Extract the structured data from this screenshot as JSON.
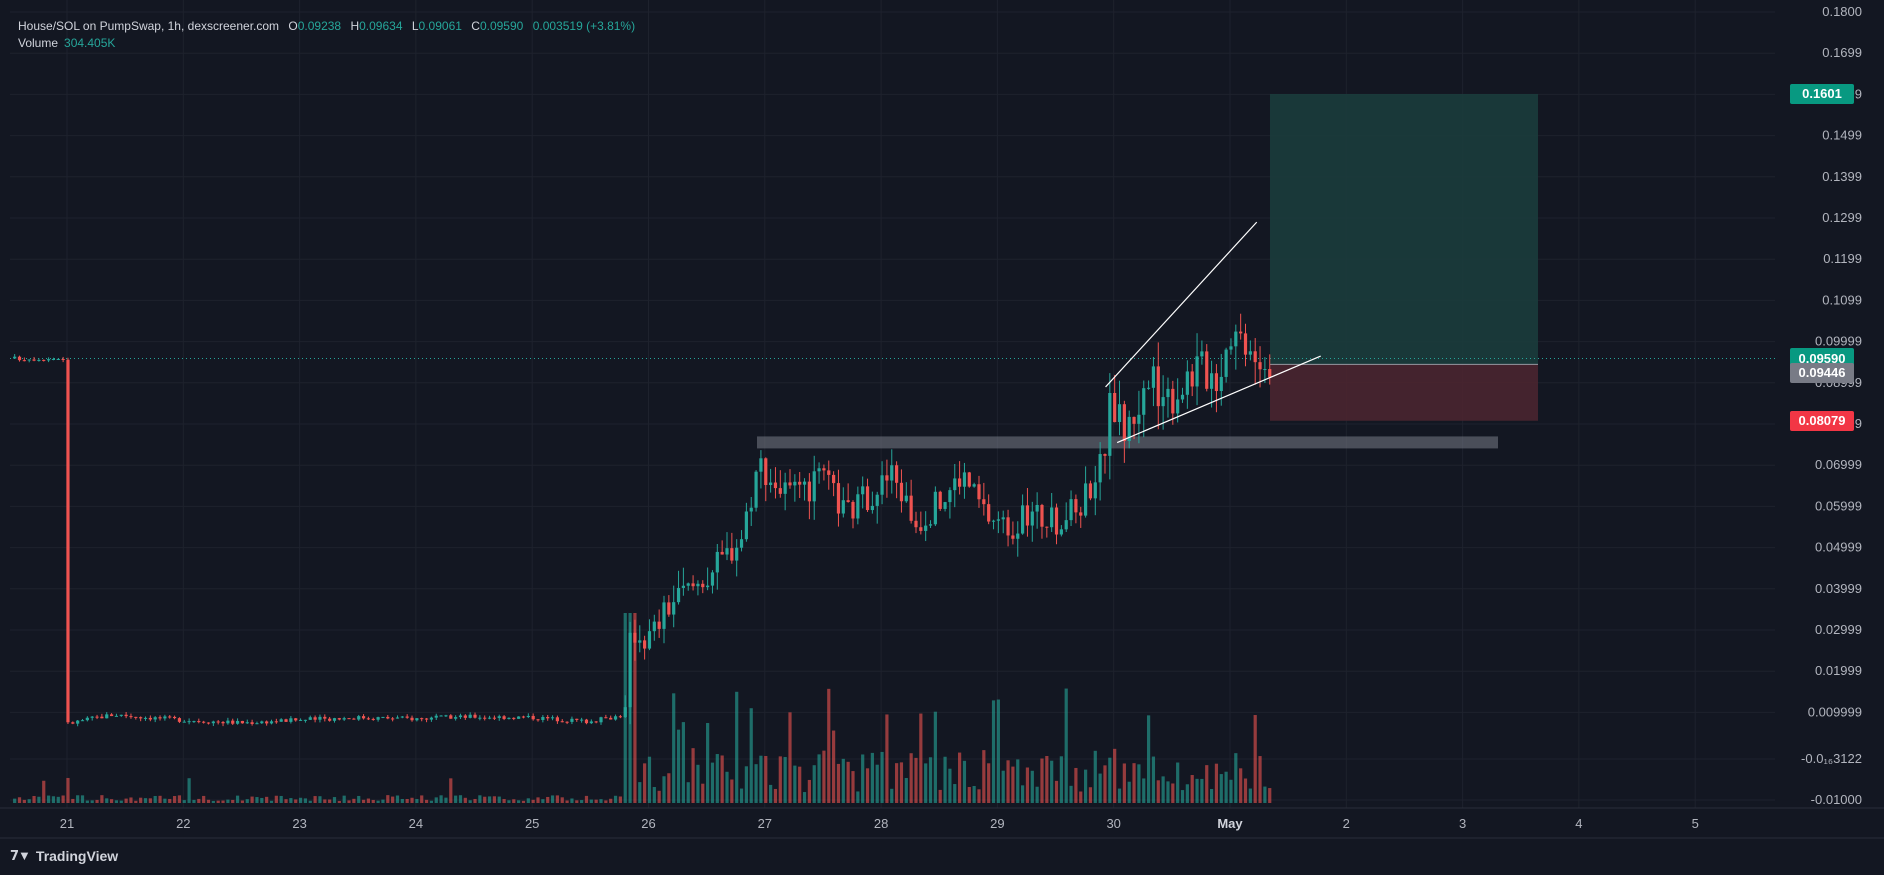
{
  "legend": {
    "symbol": "House/SOL on PumpSwap, 1h, dexscreener.com",
    "o_label": "O",
    "o_value": "0.09238",
    "h_label": "H",
    "h_value": "0.09634",
    "l_label": "L",
    "l_value": "0.09061",
    "c_label": "C",
    "c_value": "0.09590",
    "change": "0.003519 (+3.81%)",
    "volume_label": "Volume",
    "volume_value": "304.405K"
  },
  "badges": {
    "target": {
      "text": "0.1601",
      "color": "#089981"
    },
    "last": {
      "text": "0.09590",
      "color": "#089981"
    },
    "entry": {
      "text": "0.09446",
      "color": "#787b86"
    },
    "stop": {
      "text": "0.08079",
      "color": "#f23645"
    }
  },
  "brand": {
    "name": "TradingView",
    "icon": "tradingview-logo-icon"
  },
  "colors": {
    "background": "#131722",
    "up": "#26a69a",
    "down": "#ef5350",
    "grid": "#1e222d",
    "profit_zone": "#1b3c3c",
    "loss_zone": "#4a2530"
  },
  "chart_data": {
    "type": "candlestick",
    "symbol": "House/SOL",
    "interval": "1h",
    "y_axis": {
      "ticks": [
        "0.1800",
        "0.1699",
        "0.1599",
        "0.1499",
        "0.1399",
        "0.1299",
        "0.1199",
        "0.1099",
        "0.09999",
        "0.08999",
        "0.07999",
        "0.06999",
        "0.05999",
        "0.04999",
        "0.03999",
        "0.02999",
        "0.01999",
        "0.009999",
        "-0.0₁₆3122",
        "-0.01000"
      ],
      "range": [
        -0.0105,
        0.18
      ]
    },
    "x_axis": {
      "ticks": [
        "21",
        "22",
        "23",
        "24",
        "25",
        "26",
        "27",
        "28",
        "29",
        "30",
        "May",
        "2",
        "3",
        "4",
        "5"
      ]
    },
    "price_path": [
      [
        21.0,
        0.0072
      ],
      [
        21.2,
        0.0085
      ],
      [
        21.4,
        0.0095
      ],
      [
        21.7,
        0.0088
      ],
      [
        22.0,
        0.0082
      ],
      [
        22.5,
        0.0075
      ],
      [
        23.0,
        0.0082
      ],
      [
        23.5,
        0.0088
      ],
      [
        24.0,
        0.0085
      ],
      [
        24.5,
        0.009
      ],
      [
        25.0,
        0.0088
      ],
      [
        25.5,
        0.0078
      ],
      [
        25.8,
        0.0095
      ],
      [
        25.85,
        0.03
      ],
      [
        26.0,
        0.028
      ],
      [
        26.2,
        0.037
      ],
      [
        26.4,
        0.041
      ],
      [
        26.6,
        0.046
      ],
      [
        26.8,
        0.053
      ],
      [
        26.95,
        0.071
      ],
      [
        27.1,
        0.065
      ],
      [
        27.3,
        0.062
      ],
      [
        27.5,
        0.067
      ],
      [
        27.7,
        0.058
      ],
      [
        27.9,
        0.063
      ],
      [
        28.1,
        0.068
      ],
      [
        28.3,
        0.056
      ],
      [
        28.5,
        0.061
      ],
      [
        28.7,
        0.068
      ],
      [
        28.9,
        0.058
      ],
      [
        29.1,
        0.055
      ],
      [
        29.3,
        0.058
      ],
      [
        29.5,
        0.056
      ],
      [
        29.7,
        0.06
      ],
      [
        29.9,
        0.071
      ],
      [
        29.98,
        0.086
      ],
      [
        30.1,
        0.078
      ],
      [
        30.3,
        0.09
      ],
      [
        30.5,
        0.087
      ],
      [
        30.7,
        0.094
      ],
      [
        30.9,
        0.092
      ],
      [
        31.0,
        0.103
      ],
      [
        31.2,
        0.1
      ],
      [
        31.3,
        0.095
      ],
      [
        31.35,
        0.0959
      ]
    ],
    "annotations": {
      "horizontal_zone": [
        0.0745,
        0.0765
      ],
      "rising_wedge_upper": [
        [
          29.93,
          0.089
        ],
        [
          31.23,
          0.129
        ]
      ],
      "rising_wedge_lower": [
        [
          30.03,
          0.0755
        ],
        [
          31.78,
          0.0965
        ]
      ],
      "position_long": {
        "entry": 0.09446,
        "target": 0.1601,
        "stop": 0.08079
      }
    },
    "last_price": 0.0959,
    "volume": "304.405K"
  }
}
